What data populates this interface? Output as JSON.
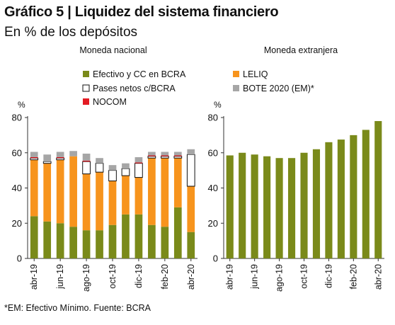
{
  "title": "Gráfico 5 | Liquidez del sistema financiero",
  "subtitle": "En % de los depósitos",
  "footer": "*EM: Efectivo Mínimo. Fuente: BCRA",
  "chart_data": [
    {
      "type": "bar",
      "stacked": true,
      "title": "Moneda nacional",
      "ylabel": "%",
      "ylim": [
        0,
        80
      ],
      "yticks": [
        0,
        20,
        40,
        60,
        80
      ],
      "x_tick_labels": [
        "abr-19",
        "jun-19",
        "ago-19",
        "oct-19",
        "dic-19",
        "feb-20",
        "abr-20"
      ],
      "categories": [
        "abr-19",
        "may-19",
        "jun-19",
        "jul-19",
        "ago-19",
        "sep-19",
        "oct-19",
        "nov-19",
        "dic-19",
        "ene-20",
        "feb-20",
        "mar-20",
        "abr-20"
      ],
      "legend_placement": "top",
      "series": [
        {
          "name": "Efectivo y CC en BCRA",
          "color": "#7a8a1a",
          "values": [
            24,
            21,
            20,
            18,
            16,
            16,
            19,
            25,
            25,
            19,
            18,
            29,
            15
          ]
        },
        {
          "name": "LELIQ",
          "color": "#f7941d",
          "values": [
            32,
            33,
            36,
            40,
            32,
            33,
            25,
            22,
            21,
            38,
            39,
            28,
            26
          ]
        },
        {
          "name": "Pases netos c/BCRA",
          "color": "#ffffff",
          "values": [
            1,
            1,
            1,
            0,
            7,
            5,
            6,
            4,
            8,
            1,
            1,
            1,
            18
          ]
        },
        {
          "name": "NOCOM",
          "color": "#e31b23",
          "values": [
            0.5,
            0,
            0.5,
            0,
            0.5,
            0,
            0,
            0,
            0.5,
            0.5,
            0.5,
            0.5,
            0
          ]
        },
        {
          "name": "BOTE 2020 (EM)*",
          "color": "#a6a6a6",
          "values": [
            3,
            4,
            3,
            3,
            4,
            3,
            3,
            3,
            3,
            2,
            2,
            2,
            3
          ]
        }
      ]
    },
    {
      "type": "bar",
      "title": "Moneda extranjera",
      "ylabel": "%",
      "ylim": [
        0,
        80
      ],
      "yticks": [
        0,
        20,
        40,
        60,
        80
      ],
      "x_tick_labels": [
        "abr-19",
        "jun-19",
        "ago-19",
        "oct-19",
        "dic-19",
        "feb-20",
        "abr-20"
      ],
      "categories": [
        "abr-19",
        "may-19",
        "jun-19",
        "jul-19",
        "ago-19",
        "sep-19",
        "oct-19",
        "nov-19",
        "dic-19",
        "ene-20",
        "feb-20",
        "mar-20",
        "abr-20"
      ],
      "series": [
        {
          "color": "#7a8a1a",
          "values": [
            58.5,
            60,
            59,
            58,
            57,
            57,
            60,
            62,
            66,
            67.5,
            70,
            73,
            78
          ]
        }
      ]
    }
  ]
}
